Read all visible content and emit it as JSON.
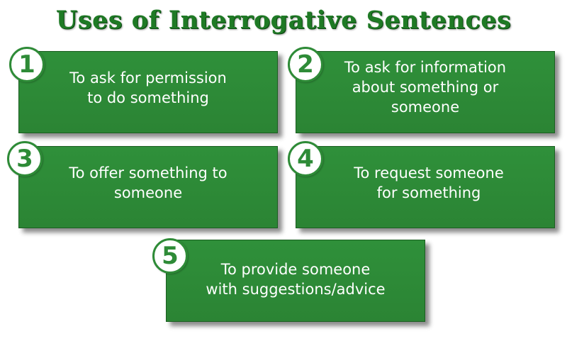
{
  "title": "Uses of Interrogative Sentences",
  "colors": {
    "title": "#1f7a25",
    "card": "#2e8b37",
    "card_text": "#ffffff",
    "badge_bg": "#ffffff",
    "badge_number": "#2e8b37"
  },
  "items": [
    {
      "number": "1",
      "text": "To ask for permission\nto do something"
    },
    {
      "number": "2",
      "text": "To ask for information\nabout something or\nsomeone"
    },
    {
      "number": "3",
      "text": "To offer something to\nsomeone"
    },
    {
      "number": "4",
      "text": "To request someone\nfor something"
    },
    {
      "number": "5",
      "text": "To provide someone\nwith suggestions/advice"
    }
  ]
}
